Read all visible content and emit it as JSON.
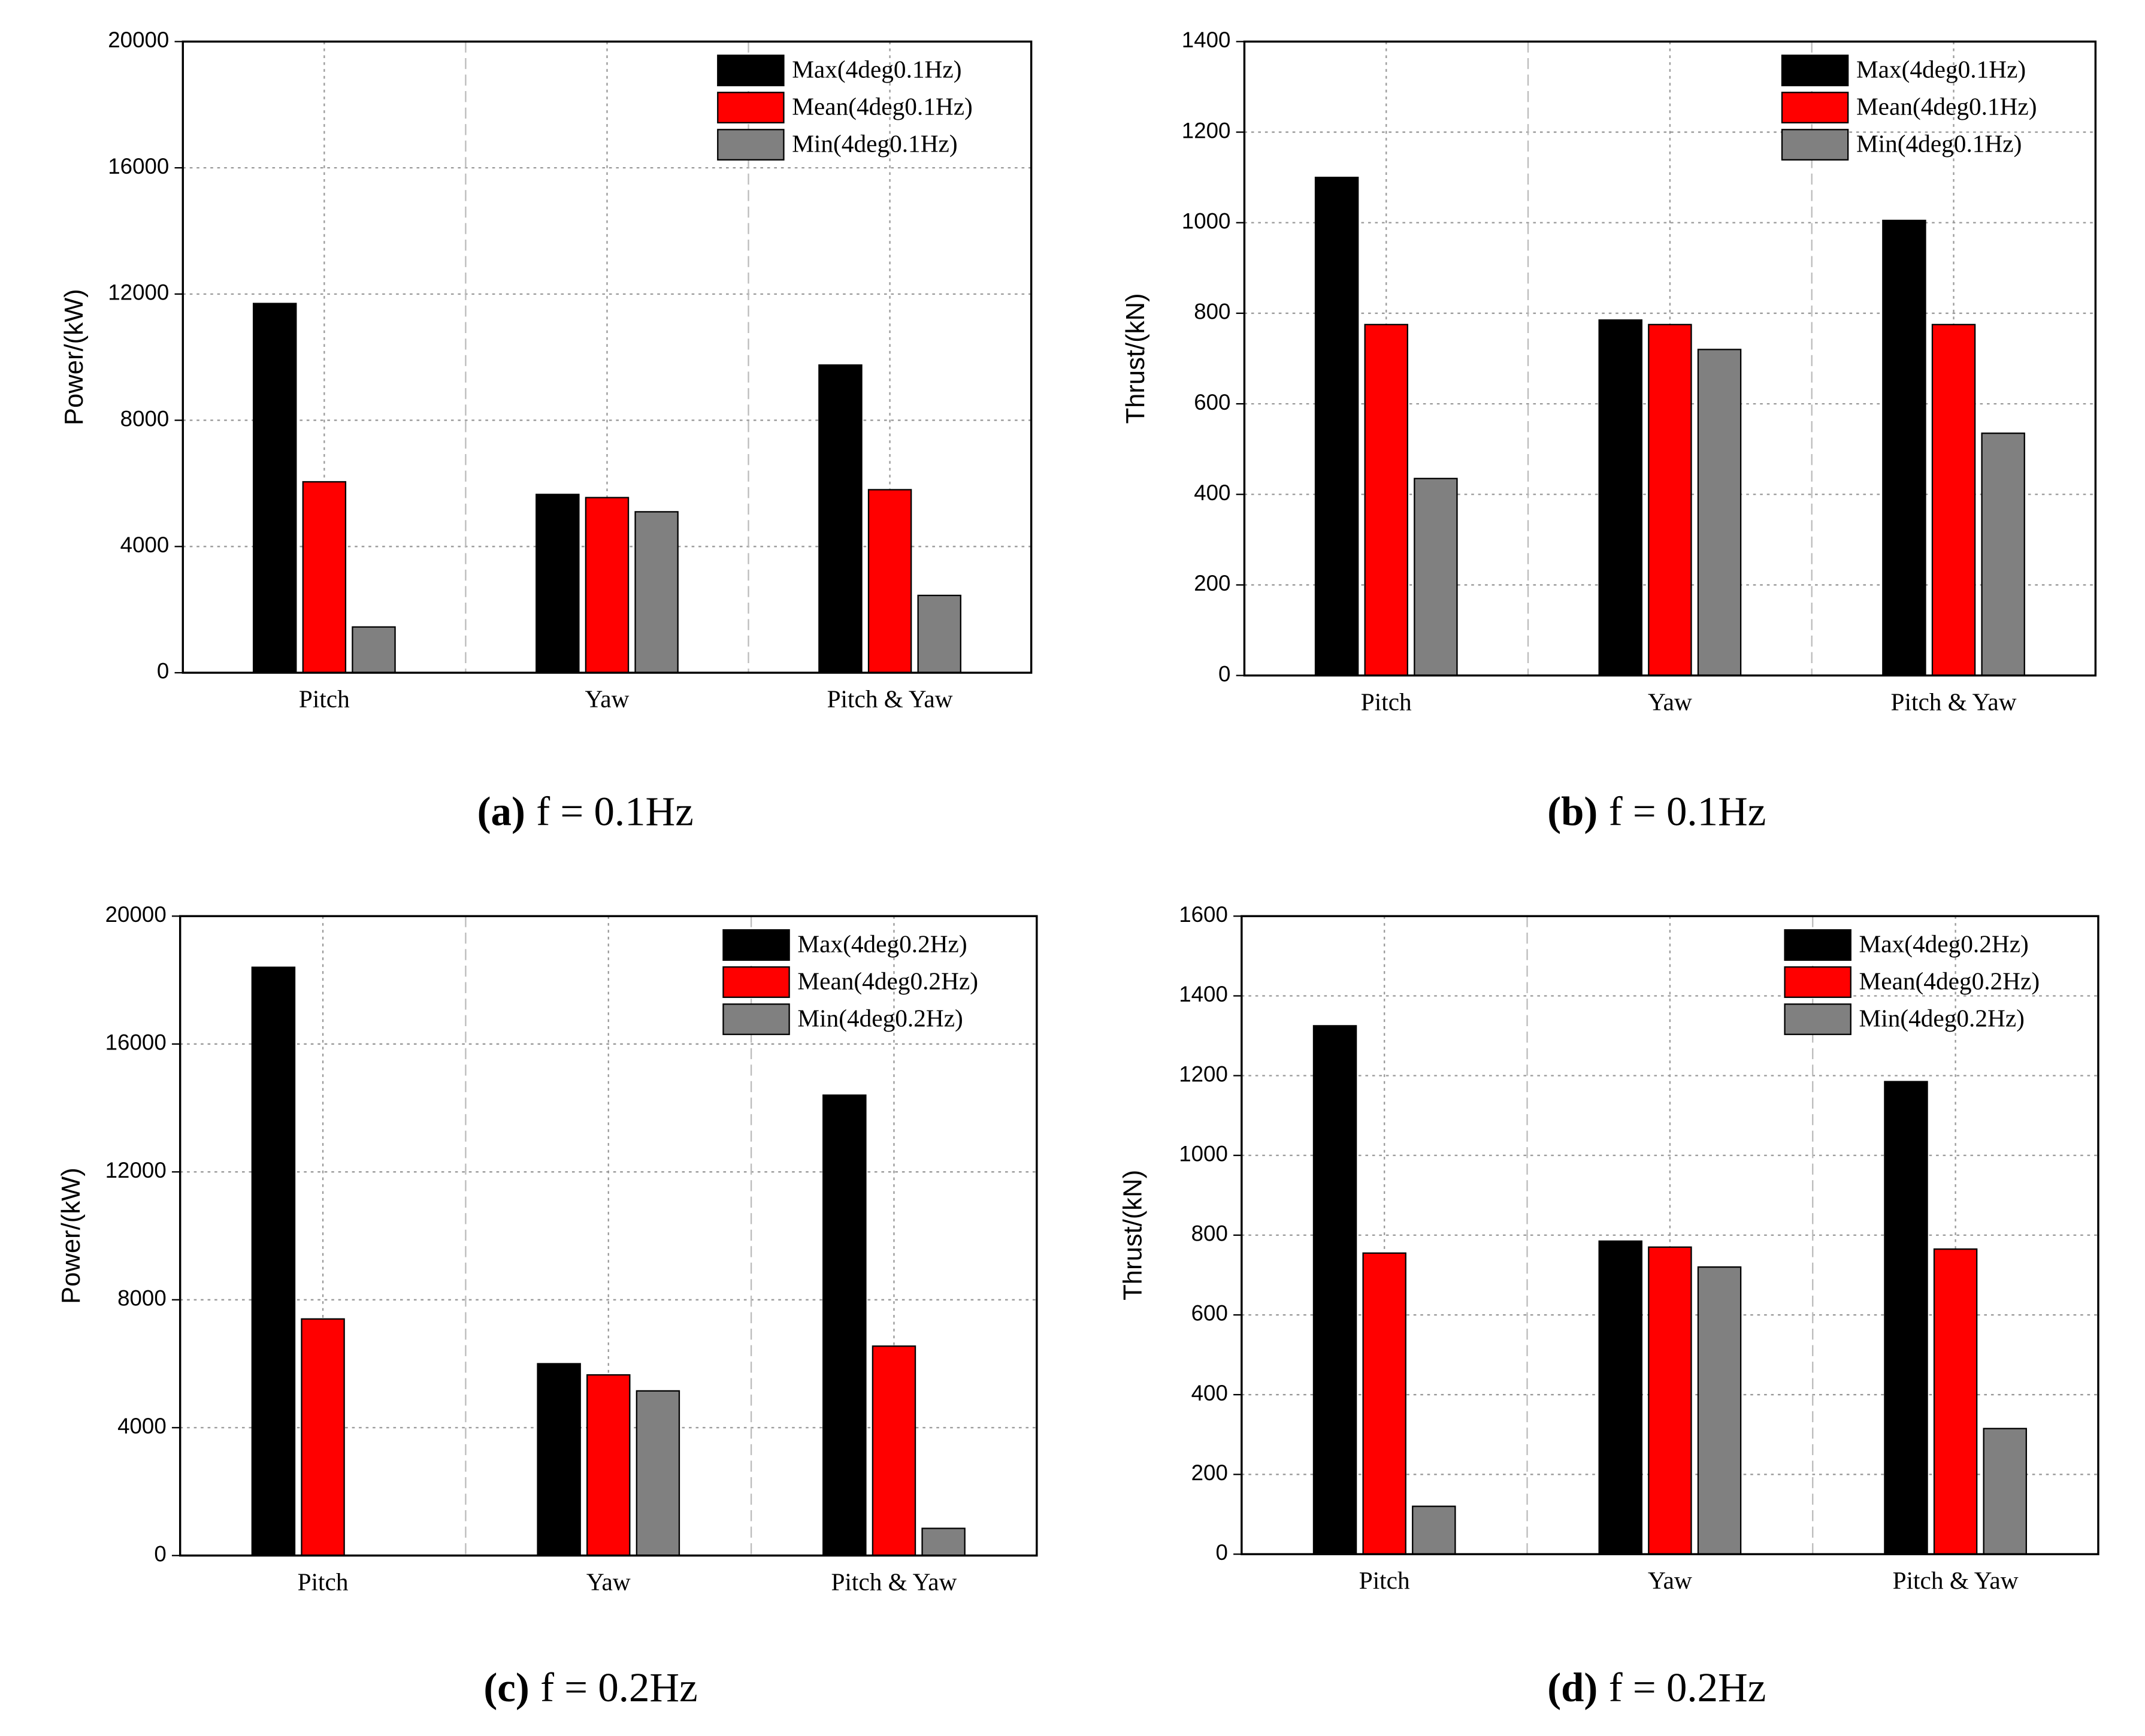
{
  "chart_data": [
    {
      "type": "bar",
      "ylabel": "Power/(kW)",
      "caption_label": "(a)",
      "caption": "f = 0.1Hz",
      "categories": [
        "Pitch",
        "Yaw",
        "Pitch & Yaw"
      ],
      "series": [
        {
          "name": "Max(4deg0.1Hz)",
          "color": "#000000",
          "values": [
            11700,
            5650,
            9750
          ]
        },
        {
          "name": "Mean(4deg0.1Hz)",
          "color": "#ff0000",
          "values": [
            6050,
            5550,
            5800
          ]
        },
        {
          "name": "Min(4deg0.1Hz)",
          "color": "#808080",
          "values": [
            1450,
            5100,
            2450
          ]
        }
      ],
      "ylim": [
        0,
        20000
      ],
      "yticks": [
        0,
        4000,
        8000,
        12000,
        16000,
        20000
      ],
      "grid": true
    },
    {
      "type": "bar",
      "ylabel": "Thrust/(kN)",
      "caption_label": "(b)",
      "caption": "f = 0.1Hz",
      "categories": [
        "Pitch",
        "Yaw",
        "Pitch & Yaw"
      ],
      "series": [
        {
          "name": "Max(4deg0.1Hz)",
          "color": "#000000",
          "values": [
            1100,
            785,
            1005
          ]
        },
        {
          "name": "Mean(4deg0.1Hz)",
          "color": "#ff0000",
          "values": [
            775,
            775,
            775
          ]
        },
        {
          "name": "Min(4deg0.1Hz)",
          "color": "#808080",
          "values": [
            435,
            720,
            535
          ]
        }
      ],
      "ylim": [
        0,
        1400
      ],
      "yticks": [
        0,
        200,
        400,
        600,
        800,
        1000,
        1200,
        1400
      ],
      "grid": true
    },
    {
      "type": "bar",
      "ylabel": "Power/(kW)",
      "caption_label": "(c)",
      "caption": "f = 0.2Hz",
      "categories": [
        "Pitch",
        "Yaw",
        "Pitch & Yaw"
      ],
      "series": [
        {
          "name": "Max(4deg0.2Hz)",
          "color": "#000000",
          "values": [
            18400,
            6000,
            14400
          ]
        },
        {
          "name": "Mean(4deg0.2Hz)",
          "color": "#ff0000",
          "values": [
            7400,
            5650,
            6550
          ]
        },
        {
          "name": "Min(4deg0.2Hz)",
          "color": "#808080",
          "values": [
            null,
            5150,
            850
          ]
        }
      ],
      "ylim": [
        0,
        20000
      ],
      "yticks": [
        0,
        4000,
        8000,
        12000,
        16000,
        20000
      ],
      "grid": true
    },
    {
      "type": "bar",
      "ylabel": "Thrust/(kN)",
      "caption_label": "(d)",
      "caption": "f = 0.2Hz",
      "categories": [
        "Pitch",
        "Yaw",
        "Pitch & Yaw"
      ],
      "series": [
        {
          "name": "Max(4deg0.2Hz)",
          "color": "#000000",
          "values": [
            1325,
            785,
            1185
          ]
        },
        {
          "name": "Mean(4deg0.2Hz)",
          "color": "#ff0000",
          "values": [
            755,
            770,
            765
          ]
        },
        {
          "name": "Min(4deg0.2Hz)",
          "color": "#808080",
          "values": [
            120,
            720,
            315
          ]
        }
      ],
      "ylim": [
        0,
        1600
      ],
      "yticks": [
        0,
        200,
        400,
        600,
        800,
        1000,
        1200,
        1400,
        1600
      ],
      "grid": true
    }
  ]
}
